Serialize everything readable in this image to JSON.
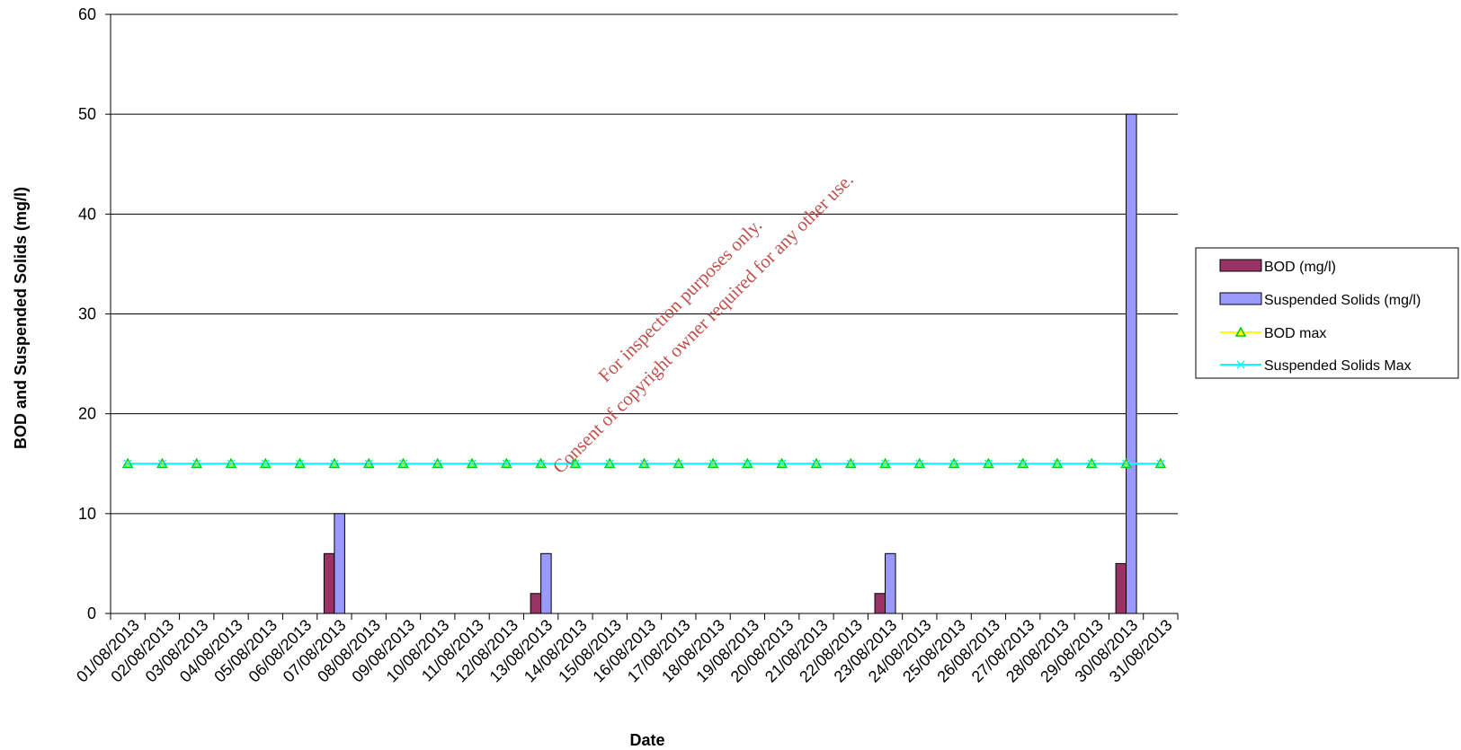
{
  "chart_data": {
    "type": "bar",
    "xlabel": "Date",
    "ylabel": "BOD and Suspended Solids (mg/l)",
    "ylim": [
      0,
      60
    ],
    "yticks": [
      0,
      10,
      20,
      30,
      40,
      50,
      60
    ],
    "grid": true,
    "legend_position": "right",
    "categories": [
      "01/08/2013",
      "02/08/2013",
      "03/08/2013",
      "04/08/2013",
      "05/08/2013",
      "06/08/2013",
      "07/08/2013",
      "08/08/2013",
      "09/08/2013",
      "10/08/2013",
      "11/08/2013",
      "12/08/2013",
      "13/08/2013",
      "14/08/2013",
      "15/08/2013",
      "16/08/2013",
      "17/08/2013",
      "18/08/2013",
      "19/08/2013",
      "20/08/2013",
      "21/08/2013",
      "22/08/2013",
      "23/08/2013",
      "24/08/2013",
      "25/08/2013",
      "26/08/2013",
      "27/08/2013",
      "28/08/2013",
      "29/08/2013",
      "30/08/2013",
      "31/08/2013"
    ],
    "series": [
      {
        "name": "BOD (mg/l)",
        "kind": "bar",
        "color": "#993366",
        "values": [
          null,
          null,
          null,
          null,
          null,
          null,
          6,
          null,
          null,
          null,
          null,
          null,
          2,
          null,
          null,
          null,
          null,
          null,
          null,
          null,
          null,
          null,
          2,
          null,
          null,
          null,
          null,
          null,
          null,
          5,
          null
        ]
      },
      {
        "name": "Suspended Solids (mg/l)",
        "kind": "bar",
        "color": "#9999ff",
        "values": [
          null,
          null,
          null,
          null,
          null,
          null,
          10,
          null,
          null,
          null,
          null,
          null,
          6,
          null,
          null,
          null,
          null,
          null,
          null,
          null,
          null,
          null,
          6,
          null,
          null,
          null,
          null,
          null,
          null,
          50,
          null
        ]
      },
      {
        "name": "BOD max",
        "kind": "line",
        "color": "#ffff00",
        "marker": "triangle",
        "marker_color": "#00cc00",
        "values": [
          15,
          15,
          15,
          15,
          15,
          15,
          15,
          15,
          15,
          15,
          15,
          15,
          15,
          15,
          15,
          15,
          15,
          15,
          15,
          15,
          15,
          15,
          15,
          15,
          15,
          15,
          15,
          15,
          15,
          15,
          15
        ]
      },
      {
        "name": "Suspended Solids Max",
        "kind": "line",
        "color": "#00ffff",
        "marker": "x",
        "values": [
          15,
          15,
          15,
          15,
          15,
          15,
          15,
          15,
          15,
          15,
          15,
          15,
          15,
          15,
          15,
          15,
          15,
          15,
          15,
          15,
          15,
          15,
          15,
          15,
          15,
          15,
          15,
          15,
          15,
          15,
          15
        ]
      }
    ]
  },
  "watermark": {
    "line1": "For inspection purposes only.",
    "line2": "Consent of copyright owner required for any other use."
  }
}
